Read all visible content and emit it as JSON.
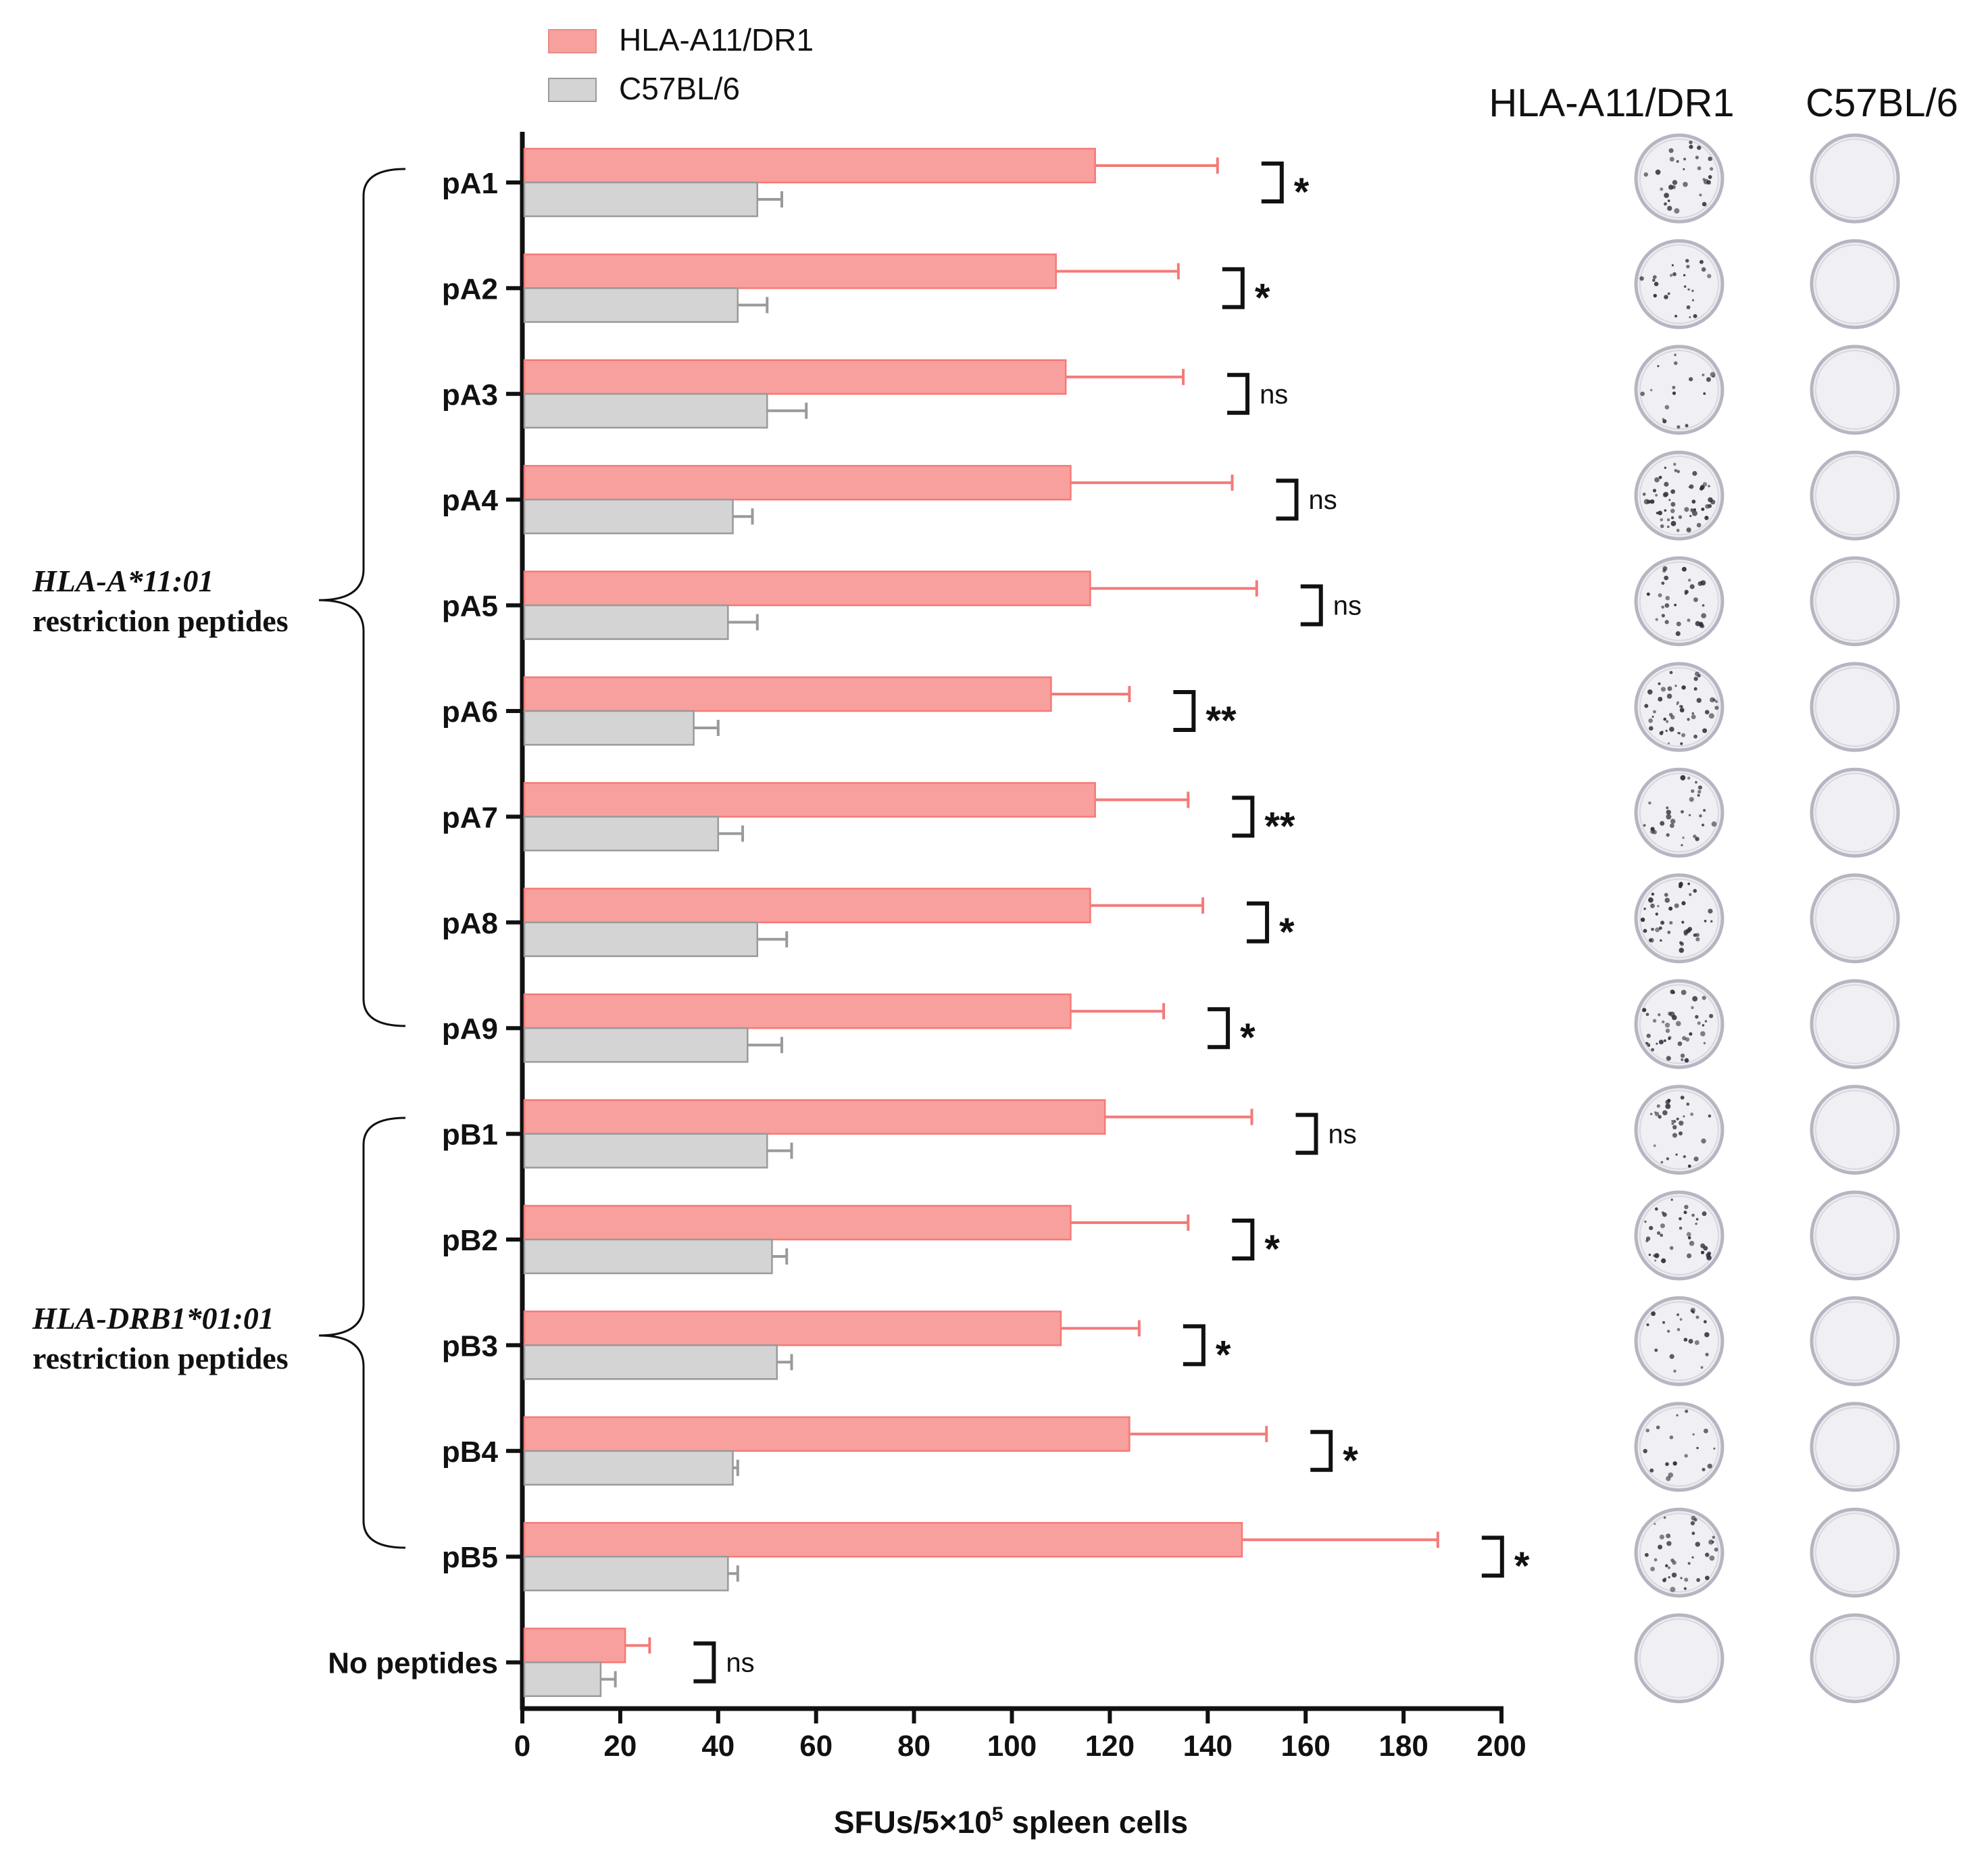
{
  "chart_data": {
    "type": "bar",
    "orientation": "horizontal",
    "categories": [
      "pA1",
      "pA2",
      "pA3",
      "pA4",
      "pA5",
      "pA6",
      "pA7",
      "pA8",
      "pA9",
      "pB1",
      "pB2",
      "pB3",
      "pB4",
      "pB5",
      "No peptides"
    ],
    "series": [
      {
        "name": "HLA-A11/DR1",
        "color": "#f8a09e",
        "err_color": "#f47a78",
        "values": [
          117,
          109,
          111,
          112,
          116,
          108,
          117,
          116,
          112,
          119,
          112,
          110,
          124,
          147,
          21
        ],
        "errors": [
          25,
          25,
          24,
          33,
          34,
          16,
          19,
          23,
          19,
          30,
          24,
          16,
          28,
          40,
          5
        ]
      },
      {
        "name": "C57BL/6",
        "color": "#d4d4d4",
        "err_color": "#9a9a9a",
        "values": [
          48,
          44,
          50,
          43,
          42,
          35,
          40,
          48,
          46,
          50,
          51,
          52,
          43,
          42,
          16
        ],
        "errors": [
          5,
          6,
          8,
          4,
          6,
          5,
          5,
          6,
          7,
          5,
          3,
          3,
          1,
          2,
          3
        ]
      }
    ],
    "significance": [
      "*",
      "*",
      "ns",
      "ns",
      "ns",
      "**",
      "**",
      "*",
      "*",
      "ns",
      "*",
      "*",
      "*",
      "*",
      "ns"
    ],
    "xlabel": "SFUs/5×10",
    "xlabel_sup": "5",
    "xlabel_tail": " spleen cells",
    "xlim": [
      0,
      200
    ],
    "xticks": [
      0,
      20,
      40,
      60,
      80,
      100,
      120,
      140,
      160,
      180,
      200
    ],
    "legend_position": "top-left",
    "groups": [
      {
        "line1": "HLA-A*11:01",
        "line2": "restriction peptides",
        "from": "pA1",
        "to": "pA9"
      },
      {
        "line1": "HLA-DRB1*01:01",
        "line2": "restriction peptides",
        "from": "pB1",
        "to": "pB5"
      }
    ]
  },
  "elispot": {
    "col1_header": "HLA-A11/DR1",
    "col2_header": "C57BL/6",
    "spot_density_a11": [
      0.5,
      0.4,
      0.3,
      0.9,
      0.5,
      0.8,
      0.5,
      0.7,
      0.7,
      0.5,
      0.6,
      0.35,
      0.3,
      0.6,
      0.0
    ],
    "spot_density_c57": [
      0,
      0,
      0,
      0,
      0,
      0,
      0,
      0,
      0,
      0,
      0,
      0,
      0,
      0,
      0
    ]
  }
}
